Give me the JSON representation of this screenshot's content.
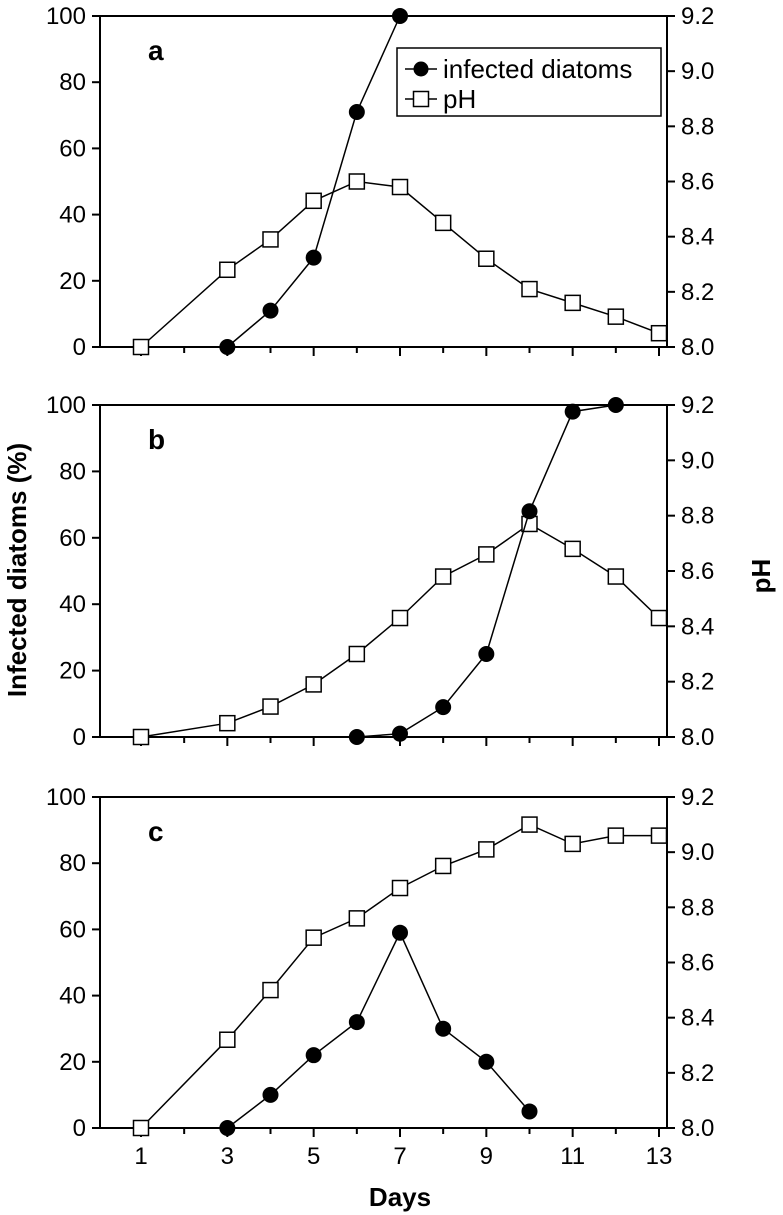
{
  "figure": {
    "ylabel_left": "Infected diatoms (%)",
    "ylabel_right": "pH",
    "xlabel": "Days",
    "x_ticks": [
      1,
      3,
      5,
      7,
      9,
      11,
      13
    ],
    "y_left_ticks": [
      "0",
      "20",
      "40",
      "60",
      "80",
      "100"
    ],
    "y_right_ticks": [
      "8.0",
      "8.2",
      "8.4",
      "8.6",
      "8.8",
      "9.0",
      "9.2"
    ],
    "legend": {
      "placement": "top-right of panel a",
      "infected_label": "infected diatoms",
      "ph_label": "pH"
    },
    "colors": {
      "infected": "#000000",
      "ph": "#ffffff",
      "stroke": "#000000"
    }
  },
  "chart_data": [
    {
      "type": "line",
      "panel": "a",
      "xlim": [
        1,
        13
      ],
      "ylim_left": [
        0,
        100
      ],
      "ylim_right": [
        8.0,
        9.2
      ],
      "series": [
        {
          "name": "infected diatoms",
          "axis": "left",
          "marker": "filled-circle",
          "x": [
            3,
            4,
            5,
            6,
            7
          ],
          "y": [
            0,
            11,
            27,
            71,
            100
          ]
        },
        {
          "name": "pH",
          "axis": "right",
          "marker": "open-square",
          "x": [
            1,
            3,
            4,
            5,
            6,
            7,
            8,
            9,
            10,
            11,
            12,
            13
          ],
          "y": [
            8.0,
            8.28,
            8.39,
            8.53,
            8.6,
            8.58,
            8.45,
            8.32,
            8.21,
            8.16,
            8.11,
            8.05
          ]
        }
      ]
    },
    {
      "type": "line",
      "panel": "b",
      "xlim": [
        1,
        13
      ],
      "ylim_left": [
        0,
        100
      ],
      "ylim_right": [
        8.0,
        9.2
      ],
      "series": [
        {
          "name": "infected diatoms",
          "axis": "left",
          "marker": "filled-circle",
          "x": [
            6,
            7,
            8,
            9,
            10,
            11,
            12
          ],
          "y": [
            0,
            1,
            9,
            25,
            68,
            98,
            100
          ]
        },
        {
          "name": "pH",
          "axis": "right",
          "marker": "open-square",
          "x": [
            1,
            3,
            4,
            5,
            6,
            7,
            8,
            9,
            10,
            11,
            12,
            13
          ],
          "y": [
            8.0,
            8.05,
            8.11,
            8.19,
            8.3,
            8.43,
            8.58,
            8.66,
            8.77,
            8.68,
            8.58,
            8.43
          ]
        }
      ]
    },
    {
      "type": "line",
      "panel": "c",
      "xlim": [
        1,
        13
      ],
      "ylim_left": [
        0,
        100
      ],
      "ylim_right": [
        8.0,
        9.2
      ],
      "series": [
        {
          "name": "infected diatoms",
          "axis": "left",
          "marker": "filled-circle",
          "x": [
            3,
            4,
            5,
            6,
            7,
            8,
            9,
            10
          ],
          "y": [
            0,
            10,
            22,
            32,
            59,
            30,
            20,
            5
          ]
        },
        {
          "name": "pH",
          "axis": "right",
          "marker": "open-square",
          "x": [
            1,
            3,
            4,
            5,
            6,
            7,
            8,
            9,
            10,
            11,
            12,
            13
          ],
          "y": [
            8.0,
            8.32,
            8.5,
            8.69,
            8.76,
            8.87,
            8.95,
            9.01,
            9.1,
            9.03,
            9.06,
            9.06
          ]
        }
      ]
    }
  ]
}
